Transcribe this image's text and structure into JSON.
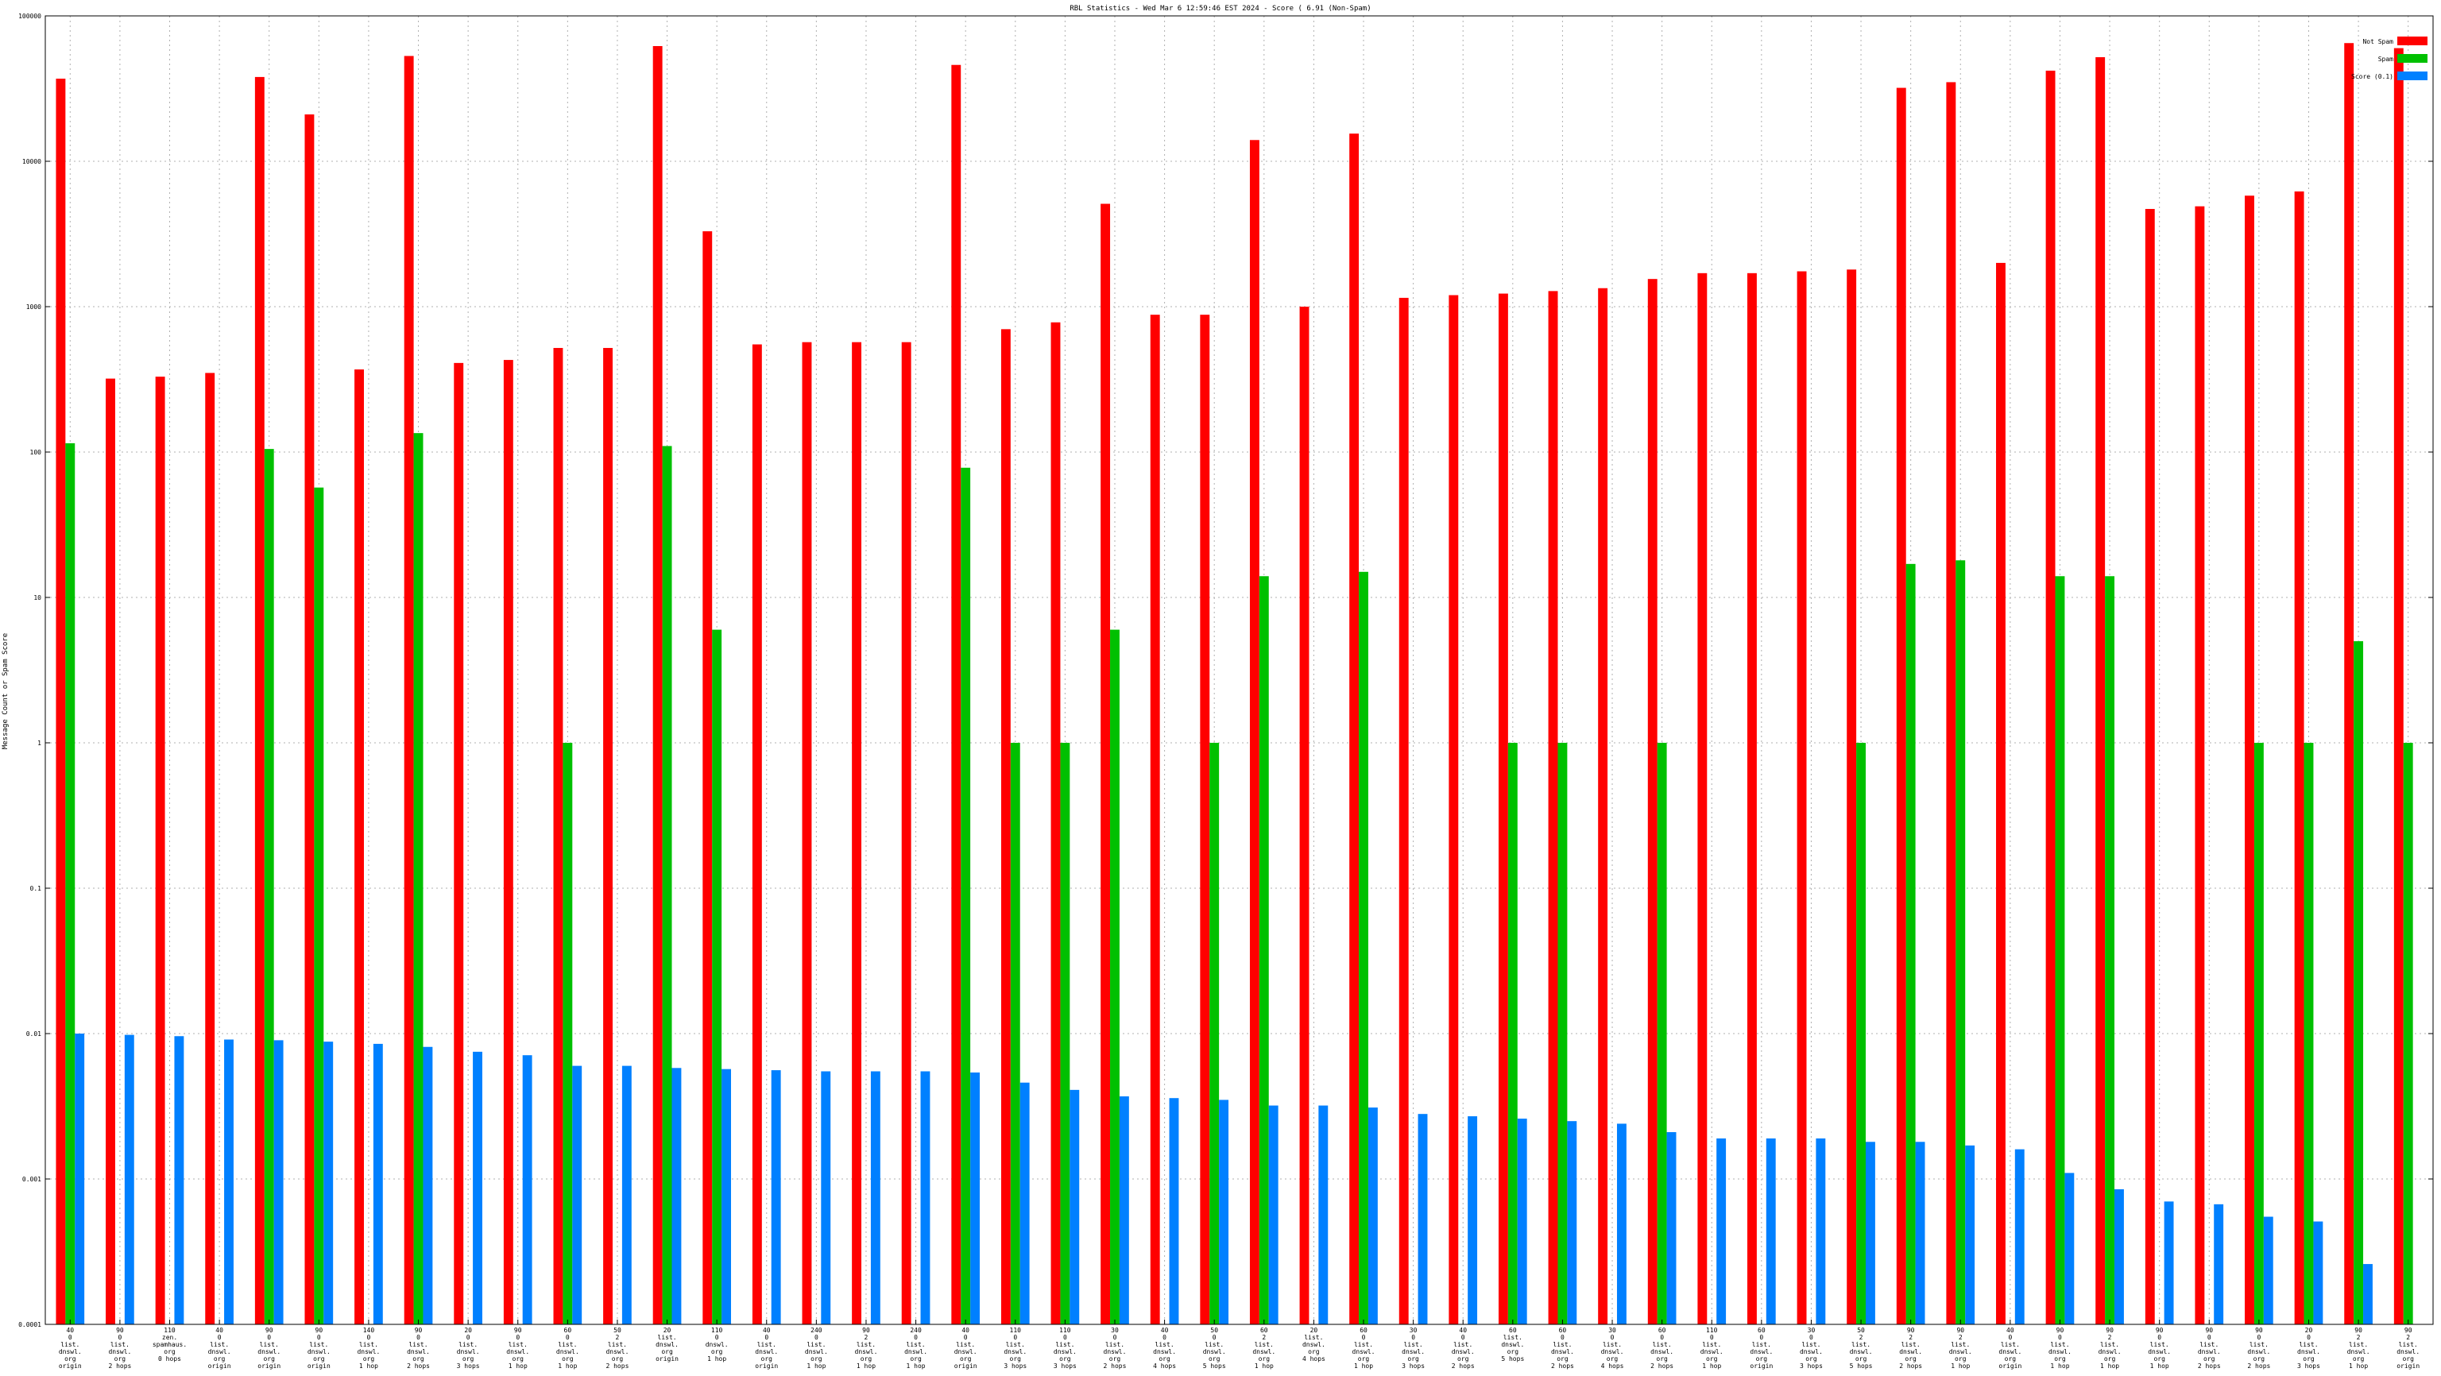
{
  "chart_data": {
    "type": "bar",
    "title": "RBL Statistics - Wed Mar  6 12:59:46 EST 2024 - Score ( 6.91 (Non-Spam)",
    "ylabel": "Message Count or Spam Score",
    "xlabel": "",
    "yscale": "log",
    "ylim": [
      0.0001,
      100000
    ],
    "yticks": [
      "100000",
      "10000",
      "1000",
      "100",
      "10",
      "1",
      "0.1",
      "0.01",
      "0.001",
      "0.0001"
    ],
    "grid": true,
    "legend_position": "top-right",
    "categories": [
      [
        "40",
        "0",
        "list.",
        "dnswl.",
        "org",
        "origin"
      ],
      [
        "90",
        "0",
        "list.",
        "dnswl.",
        "org",
        "2 hops"
      ],
      [
        "110",
        "zen.",
        "spamhaus.",
        "org",
        "0 hops"
      ],
      [
        "40",
        "0",
        "list.",
        "dnswl.",
        "org",
        "origin"
      ],
      [
        "90",
        "0",
        "list.",
        "dnswl.",
        "org",
        "origin"
      ],
      [
        "90",
        "0",
        "list.",
        "dnswl.",
        "org",
        "origin"
      ],
      [
        "140",
        "0",
        "list.",
        "dnswl.",
        "org",
        "1 hop"
      ],
      [
        "90",
        "0",
        "list.",
        "dnswl.",
        "org",
        "2 hops"
      ],
      [
        "20",
        "0",
        "list.",
        "dnswl.",
        "org",
        "3 hops"
      ],
      [
        "90",
        "0",
        "list.",
        "dnswl.",
        "org",
        "1 hop"
      ],
      [
        "60",
        "0",
        "list.",
        "dnswl.",
        "org",
        "1 hop"
      ],
      [
        "50",
        "2",
        "list.",
        "dnswl.",
        "org",
        "2 hops"
      ],
      [
        "20",
        "list.",
        "dnswl.",
        "org",
        "origin"
      ],
      [
        "110",
        "0",
        "dnswl.",
        "org",
        "1 hop"
      ],
      [
        "40",
        "0",
        "list.",
        "dnswl.",
        "org",
        "origin"
      ],
      [
        "240",
        "0",
        "list.",
        "dnswl.",
        "org",
        "1 hop"
      ],
      [
        "90",
        "2",
        "list.",
        "dnswl.",
        "org",
        "1 hop"
      ],
      [
        "240",
        "0",
        "list.",
        "dnswl.",
        "org",
        "1 hop"
      ],
      [
        "40",
        "0",
        "list.",
        "dnswl.",
        "org",
        "origin"
      ],
      [
        "110",
        "0",
        "list.",
        "dnswl.",
        "org",
        "3 hops"
      ],
      [
        "110",
        "0",
        "list.",
        "dnswl.",
        "org",
        "3 hops"
      ],
      [
        "30",
        "0",
        "list.",
        "dnswl.",
        "org",
        "2 hops"
      ],
      [
        "40",
        "0",
        "list.",
        "dnswl.",
        "org",
        "4 hops"
      ],
      [
        "50",
        "0",
        "list.",
        "dnswl.",
        "org",
        "5 hops"
      ],
      [
        "60",
        "2",
        "list.",
        "dnswl.",
        "org",
        "1 hop"
      ],
      [
        "20",
        "list.",
        "dnswl.",
        "org",
        "4 hops"
      ],
      [
        "60",
        "0",
        "list.",
        "dnswl.",
        "org",
        "1 hop"
      ],
      [
        "30",
        "0",
        "list.",
        "dnswl.",
        "org",
        "3 hops"
      ],
      [
        "40",
        "0",
        "list.",
        "dnswl.",
        "org",
        "2 hops"
      ],
      [
        "60",
        "list.",
        "dnswl.",
        "org",
        "5 hops"
      ],
      [
        "60",
        "0",
        "list.",
        "dnswl.",
        "org",
        "2 hops"
      ],
      [
        "30",
        "0",
        "list.",
        "dnswl.",
        "org",
        "4 hops"
      ],
      [
        "60",
        "0",
        "list.",
        "dnswl.",
        "org",
        "2 hops"
      ],
      [
        "110",
        "0",
        "list.",
        "dnswl.",
        "org",
        "1 hop"
      ],
      [
        "60",
        "0",
        "list.",
        "dnswl.",
        "org",
        "origin"
      ],
      [
        "30",
        "0",
        "list.",
        "dnswl.",
        "org",
        "3 hops"
      ],
      [
        "50",
        "2",
        "list.",
        "dnswl.",
        "org",
        "5 hops"
      ],
      [
        "90",
        "2",
        "list.",
        "dnswl.",
        "org",
        "2 hops"
      ],
      [
        "90",
        "2",
        "list.",
        "dnswl.",
        "org",
        "1 hop"
      ],
      [
        "40",
        "0",
        "list.",
        "dnswl.",
        "org",
        "origin"
      ],
      [
        "90",
        "0",
        "list.",
        "dnswl.",
        "org",
        "1 hop"
      ],
      [
        "90",
        "2",
        "list.",
        "dnswl.",
        "org",
        "1 hop"
      ],
      [
        "90",
        "0",
        "list.",
        "dnswl.",
        "org",
        "1 hop"
      ],
      [
        "90",
        "0",
        "list.",
        "dnswl.",
        "org",
        "2 hops"
      ],
      [
        "90",
        "0",
        "list.",
        "dnswl.",
        "org",
        "2 hops"
      ],
      [
        "20",
        "0",
        "list.",
        "dnswl.",
        "org",
        "3 hops"
      ],
      [
        "90",
        "2",
        "list.",
        "dnswl.",
        "org",
        "1 hop"
      ],
      [
        "90",
        "2",
        "list.",
        "dnswl.",
        "org",
        "origin"
      ]
    ],
    "series": [
      {
        "name": "Not Spam",
        "color": "#ff0000",
        "values": [
          37000,
          320,
          330,
          350,
          38000,
          21000,
          370,
          53000,
          410,
          430,
          520,
          520,
          62000,
          3300,
          550,
          570,
          570,
          570,
          46000,
          700,
          780,
          5100,
          880,
          880,
          14000,
          1000,
          15500,
          1150,
          1200,
          1230,
          1280,
          1340,
          1550,
          1700,
          1700,
          1750,
          1800,
          32000,
          35000,
          2000,
          42000,
          52000,
          4700,
          4900,
          5800,
          6200,
          65000,
          60000
        ]
      },
      {
        "name": "Spam",
        "color": "#00c000",
        "values": [
          115,
          null,
          null,
          null,
          105,
          57,
          null,
          135,
          null,
          null,
          1,
          null,
          110,
          6,
          null,
          null,
          null,
          null,
          78,
          1,
          1,
          6,
          null,
          1,
          14,
          null,
          15,
          null,
          null,
          1,
          1,
          null,
          1,
          null,
          null,
          null,
          1,
          17,
          18,
          null,
          14,
          14,
          null,
          null,
          1,
          1,
          5,
          1
        ]
      },
      {
        "name": "Score (0.1)",
        "color": "#0080ff",
        "values": [
          0.01,
          0.0098,
          0.0096,
          0.0091,
          0.009,
          0.0088,
          0.0085,
          0.0081,
          0.0075,
          0.0071,
          0.006,
          0.006,
          0.0058,
          0.0057,
          0.0056,
          0.0055,
          0.0055,
          0.0055,
          0.0054,
          0.0046,
          0.0041,
          0.0037,
          0.0036,
          0.0035,
          0.0032,
          0.0032,
          0.0031,
          0.0028,
          0.0027,
          0.0026,
          0.0025,
          0.0024,
          0.0021,
          0.0019,
          0.0019,
          0.0019,
          0.0018,
          0.0018,
          0.0017,
          0.0016,
          0.0011,
          0.00085,
          0.0007,
          0.00067,
          0.00055,
          0.00051,
          0.00026,
          null
        ]
      }
    ]
  }
}
